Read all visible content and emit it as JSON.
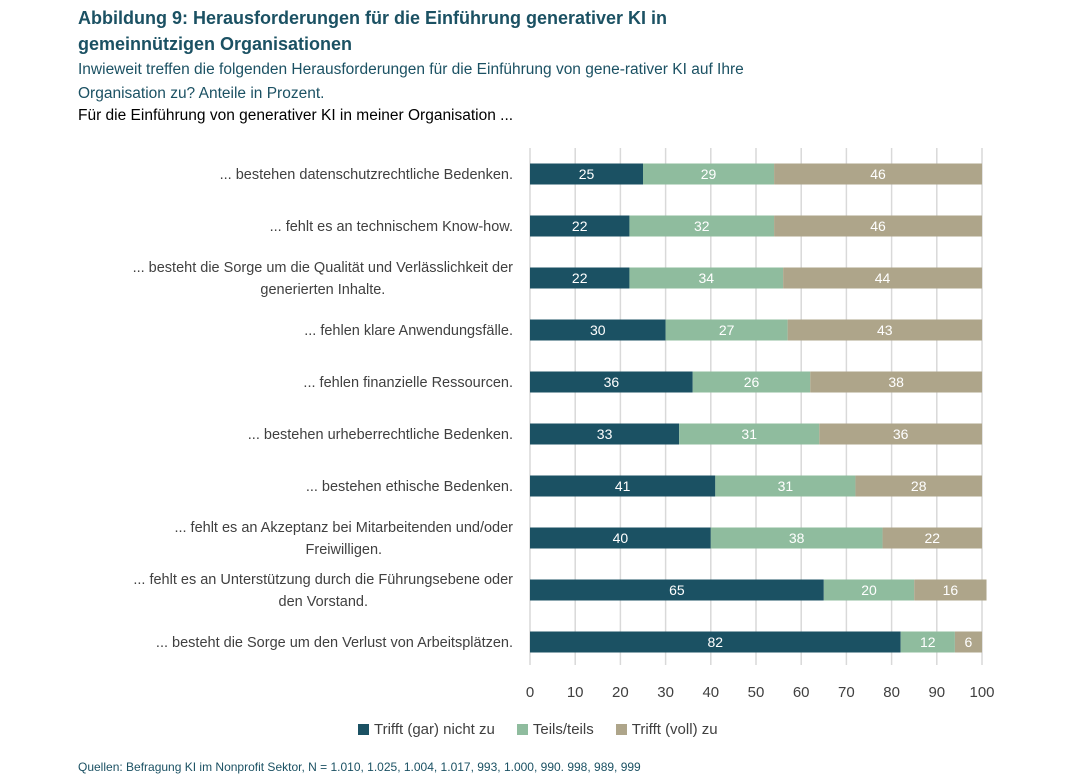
{
  "header": {
    "title": "Abbildung 9: Herausforderungen für die Einführung generativer KI in gemeinnützigen Organisationen",
    "subtitle": "Inwieweit treffen die folgenden Herausforderungen für die Einführung von gene-rativer KI auf Ihre Organisation zu? Anteile in Prozent.",
    "lead": "Für die Einführung von generativer KI in meiner Organisation ..."
  },
  "colors": {
    "series": [
      "#1b5163",
      "#8fbc9e",
      "#aea58a"
    ],
    "grid": "#d9d9d9",
    "title": "#1b5163"
  },
  "chart_data": {
    "type": "bar",
    "orientation": "horizontal",
    "stacked": true,
    "title": "Abbildung 9: Herausforderungen für die Einführung generativer KI in gemeinnützigen Organisationen",
    "xlabel": "",
    "ylabel": "",
    "xlim": [
      0,
      100
    ],
    "xticks": [
      "0",
      "10",
      "20",
      "30",
      "40",
      "50",
      "60",
      "70",
      "80",
      "90",
      "100"
    ],
    "grid": true,
    "legend_position": "bottom",
    "categories": [
      [
        "... bestehen datenschutzrechtliche Bedenken."
      ],
      [
        "... fehlt es an technischem Know-how."
      ],
      [
        "... besteht die Sorge um die Qualität und Verlässlichkeit der",
        "generierten Inhalte."
      ],
      [
        "... fehlen klare Anwendungsfälle."
      ],
      [
        "... fehlen finanzielle Ressourcen."
      ],
      [
        "... bestehen urheberrechtliche Bedenken."
      ],
      [
        "... bestehen ethische Bedenken."
      ],
      [
        "... fehlt es an Akzeptanz bei Mitarbeitenden und/oder",
        "Freiwilligen."
      ],
      [
        "... fehlt es an Unterstützung durch die Führungsebene oder",
        "den Vorstand."
      ],
      [
        "... besteht die Sorge um den Verlust von Arbeitsplätzen."
      ]
    ],
    "series": [
      {
        "name": "Trifft (gar) nicht zu",
        "values": [
          25,
          22,
          22,
          30,
          36,
          33,
          41,
          40,
          65,
          82
        ]
      },
      {
        "name": "Teils/teils",
        "values": [
          29,
          32,
          34,
          27,
          26,
          31,
          31,
          38,
          20,
          12
        ]
      },
      {
        "name": "Trifft (voll) zu",
        "values": [
          46,
          46,
          44,
          43,
          38,
          36,
          28,
          22,
          16,
          6
        ]
      }
    ]
  },
  "legend": {
    "items": [
      "Trifft (gar) nicht zu",
      "Teils/teils",
      "Trifft (voll) zu"
    ]
  },
  "source": "Quellen: Befragung KI im Nonprofit Sektor, N = 1.010, 1.025, 1.004, 1.017, 993, 1.000, 990. 998, 989, 999"
}
